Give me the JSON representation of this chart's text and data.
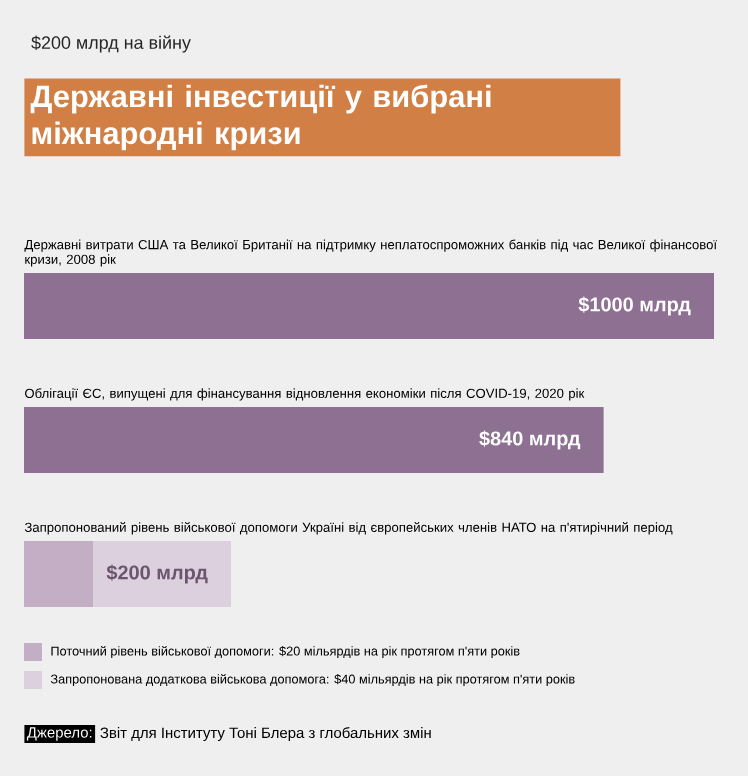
{
  "chart_data": {
    "type": "bar",
    "orientation": "horizontal",
    "stacked": true,
    "subtitle": "$200 млрд на війну",
    "title": "Державні інвестиції у вибрані міжнародні кризи",
    "categories": [
      "Державні витрати США та Великої Британії на підтримку неплатоспроможних банків під час Великої фінансової кризи, 2008 рік",
      "Облігації ЄС, випущені для фінансування відновлення економіки після COVID-19, 2020 рік",
      "Запропонований рівень військової допомоги Україні від європейських членів НАТО на п'ятирічний період"
    ],
    "xlim": [
      0,
      1000
    ],
    "series": [
      {
        "color": "#8e7093",
        "values": [
          1000,
          840,
          null
        ],
        "value_labels": [
          "$1000 млрд",
          "$840 млрд",
          null
        ]
      },
      {
        "name": "Поточний рівень військової допомоги: $20 мільярдів на рік протягом п'яти років",
        "color": "#c3aec6",
        "values": [
          null,
          null,
          100
        ],
        "value_labels": [
          null,
          null,
          null
        ]
      },
      {
        "name": "Запропонована додаткова військова допомога: $40 мільярдів на рік протягом п'яти років",
        "color": "#ddd0de",
        "values": [
          null,
          null,
          200
        ],
        "value_labels": [
          null,
          null,
          "$200 млрд"
        ]
      }
    ],
    "legend": "bottom left",
    "annotations": [
      "Джерело:",
      "Звіт для Інституту Тоні Блера з глобальних змін"
    ]
  }
}
